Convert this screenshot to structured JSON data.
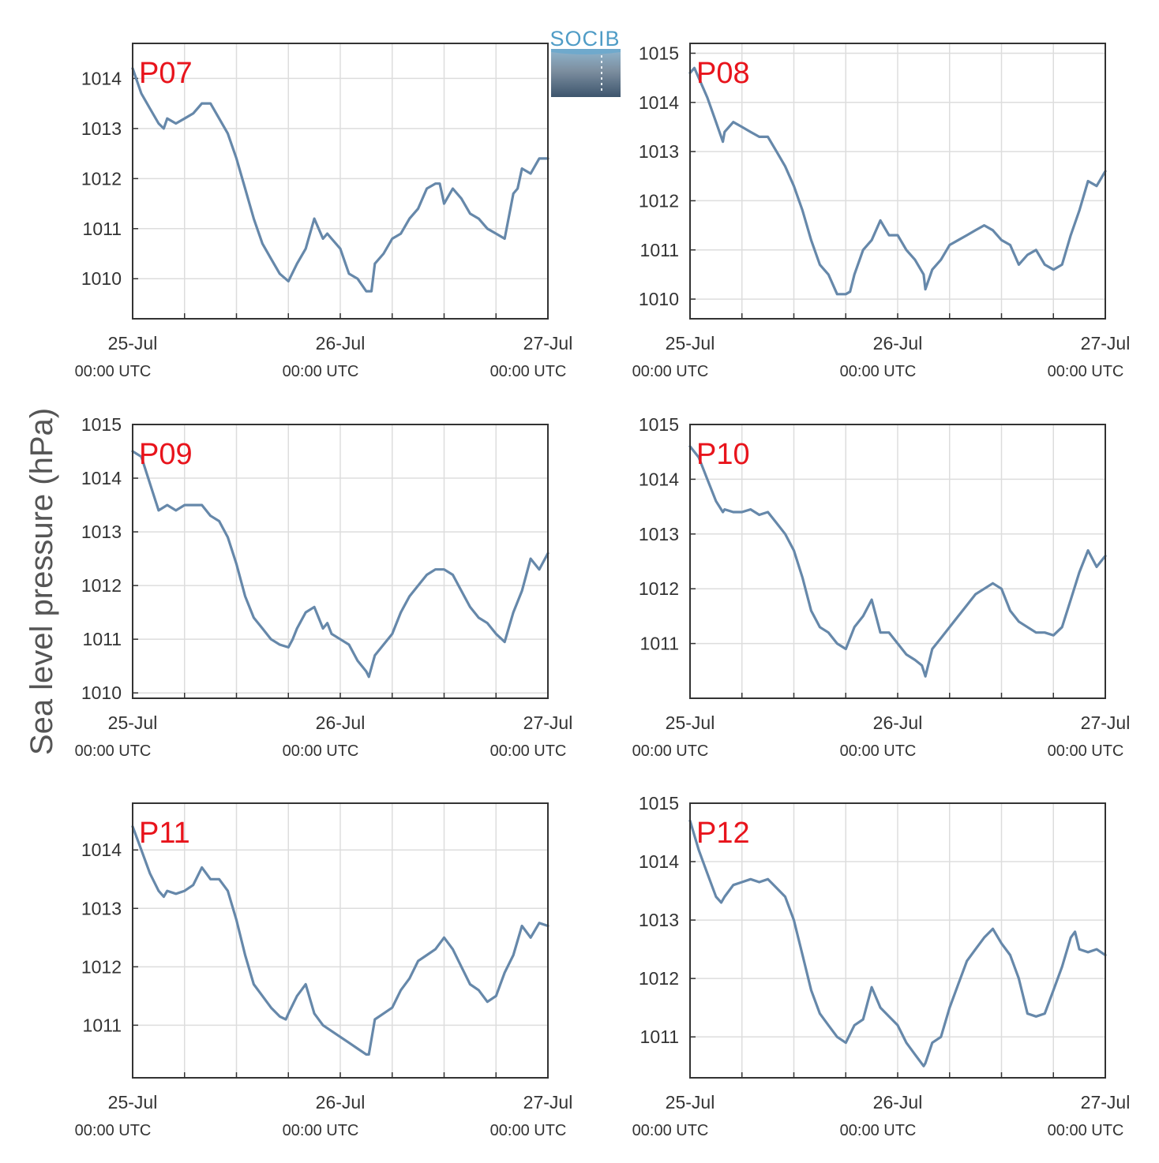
{
  "ylabel": "Sea level pressure (hPa)",
  "logo": {
    "text": "SOCIB"
  },
  "colors": {
    "line": "#6688aa",
    "panel_label": "#e8141c",
    "grid": "#dddddd",
    "axis": "#333333"
  },
  "x_ticks": [
    {
      "date": "25-Jul",
      "time": "00:00 UTC"
    },
    {
      "date": "26-Jul",
      "time": "00:00 UTC"
    },
    {
      "date": "27-Jul",
      "time": "00:00 UTC"
    }
  ],
  "chart_data": [
    {
      "type": "line",
      "name": "P07",
      "x_unit": "hours since 25-Jul 00:00 UTC",
      "xlim": [
        0,
        48
      ],
      "yticks": [
        1010,
        1011,
        1012,
        1013,
        1014
      ],
      "ylim": [
        1009.2,
        1014.7
      ],
      "x": [
        0,
        1,
        2,
        3,
        3.6,
        4,
        5,
        6,
        7,
        8,
        9,
        10,
        11,
        12,
        13,
        14,
        15,
        16,
        17,
        18,
        19,
        20,
        21,
        22,
        22.5,
        23,
        24,
        25,
        26,
        27,
        27.6,
        28,
        29,
        30,
        31,
        32,
        33,
        34,
        35,
        35.5,
        36,
        37,
        38,
        39,
        40,
        41,
        42,
        43,
        44,
        44.5,
        45,
        46,
        47,
        48
      ],
      "y": [
        1014.2,
        1013.7,
        1013.4,
        1013.1,
        1013.0,
        1013.2,
        1013.1,
        1013.2,
        1013.3,
        1013.5,
        1013.5,
        1013.2,
        1012.9,
        1012.4,
        1011.8,
        1011.2,
        1010.7,
        1010.4,
        1010.1,
        1009.95,
        1010.3,
        1010.6,
        1011.2,
        1010.8,
        1010.9,
        1010.8,
        1010.6,
        1010.1,
        1010.0,
        1009.75,
        1009.75,
        1010.3,
        1010.5,
        1010.8,
        1010.9,
        1011.2,
        1011.4,
        1011.8,
        1011.9,
        1011.9,
        1011.5,
        1011.8,
        1011.6,
        1011.3,
        1011.2,
        1011.0,
        1010.9,
        1010.8,
        1011.7,
        1011.8,
        1012.2,
        1012.1,
        1012.4,
        1012.4
      ]
    },
    {
      "type": "line",
      "name": "P08",
      "x_unit": "hours since 25-Jul 00:00 UTC",
      "xlim": [
        0,
        48
      ],
      "yticks": [
        1010,
        1011,
        1012,
        1013,
        1014,
        1015
      ],
      "ylim": [
        1009.6,
        1015.2
      ],
      "x": [
        0,
        0.5,
        1,
        2,
        3,
        3.8,
        4,
        5,
        6,
        7,
        8,
        9,
        10,
        11,
        12,
        13,
        14,
        15,
        16,
        17,
        18,
        18.5,
        19,
        20,
        21,
        22,
        23,
        24,
        25,
        26,
        27,
        27.2,
        28,
        29,
        30,
        31,
        32,
        33,
        34,
        35,
        36,
        37,
        38,
        39,
        40,
        41,
        42,
        43,
        44,
        45,
        46,
        47,
        48
      ],
      "y": [
        1014.6,
        1014.7,
        1014.5,
        1014.1,
        1013.6,
        1013.2,
        1013.4,
        1013.6,
        1013.5,
        1013.4,
        1013.3,
        1013.3,
        1013.0,
        1012.7,
        1012.3,
        1011.8,
        1011.2,
        1010.7,
        1010.5,
        1010.1,
        1010.1,
        1010.15,
        1010.5,
        1011.0,
        1011.2,
        1011.6,
        1011.3,
        1011.3,
        1011.0,
        1010.8,
        1010.5,
        1010.2,
        1010.6,
        1010.8,
        1011.1,
        1011.2,
        1011.3,
        1011.4,
        1011.5,
        1011.4,
        1011.2,
        1011.1,
        1010.7,
        1010.9,
        1011.0,
        1010.7,
        1010.6,
        1010.7,
        1011.3,
        1011.8,
        1012.4,
        1012.3,
        1012.6
      ]
    },
    {
      "type": "line",
      "name": "P09",
      "x_unit": "hours since 25-Jul 00:00 UTC",
      "xlim": [
        0,
        48
      ],
      "yticks": [
        1010,
        1011,
        1012,
        1013,
        1014,
        1015
      ],
      "ylim": [
        1009.9,
        1015.0
      ],
      "x": [
        0,
        1,
        2,
        3,
        4,
        5,
        6,
        7,
        8,
        9,
        10,
        11,
        12,
        13,
        14,
        15,
        16,
        17,
        18,
        18.5,
        19,
        20,
        21,
        22,
        22.5,
        23,
        24,
        25,
        26,
        27,
        27.3,
        28,
        29,
        30,
        31,
        32,
        33,
        34,
        35,
        36,
        37,
        38,
        39,
        40,
        41,
        42,
        43,
        44,
        45,
        46,
        47,
        48
      ],
      "y": [
        1014.5,
        1014.4,
        1013.9,
        1013.4,
        1013.5,
        1013.4,
        1013.5,
        1013.5,
        1013.5,
        1013.3,
        1013.2,
        1012.9,
        1012.4,
        1011.8,
        1011.4,
        1011.2,
        1011.0,
        1010.9,
        1010.85,
        1011.0,
        1011.2,
        1011.5,
        1011.6,
        1011.2,
        1011.3,
        1011.1,
        1011.0,
        1010.9,
        1010.6,
        1010.4,
        1010.3,
        1010.7,
        1010.9,
        1011.1,
        1011.5,
        1011.8,
        1012.0,
        1012.2,
        1012.3,
        1012.3,
        1012.2,
        1011.9,
        1011.6,
        1011.4,
        1011.3,
        1011.1,
        1010.95,
        1011.5,
        1011.9,
        1012.5,
        1012.3,
        1012.6
      ]
    },
    {
      "type": "line",
      "name": "P10",
      "x_unit": "hours since 25-Jul 00:00 UTC",
      "xlim": [
        0,
        48
      ],
      "yticks": [
        1011,
        1012,
        1013,
        1014,
        1015
      ],
      "ylim": [
        1010.0,
        1015.0
      ],
      "x": [
        0,
        1,
        2,
        3,
        3.8,
        4,
        5,
        6,
        7,
        8,
        9,
        10,
        11,
        12,
        13,
        14,
        15,
        16,
        17,
        18,
        19,
        20,
        21,
        22,
        23,
        24,
        25,
        26,
        26.8,
        27.2,
        28,
        29,
        30,
        31,
        32,
        33,
        34,
        35,
        36,
        37,
        38,
        39,
        40,
        41,
        42,
        43,
        44,
        45,
        46,
        47,
        48
      ],
      "y": [
        1014.6,
        1014.4,
        1014.0,
        1013.6,
        1013.4,
        1013.45,
        1013.4,
        1013.4,
        1013.45,
        1013.35,
        1013.4,
        1013.2,
        1013.0,
        1012.7,
        1012.2,
        1011.6,
        1011.3,
        1011.2,
        1011.0,
        1010.9,
        1011.3,
        1011.5,
        1011.8,
        1011.2,
        1011.2,
        1011.0,
        1010.8,
        1010.7,
        1010.6,
        1010.4,
        1010.9,
        1011.1,
        1011.3,
        1011.5,
        1011.7,
        1011.9,
        1012.0,
        1012.1,
        1012.0,
        1011.6,
        1011.4,
        1011.3,
        1011.2,
        1011.2,
        1011.15,
        1011.3,
        1011.8,
        1012.3,
        1012.7,
        1012.4,
        1012.6
      ]
    },
    {
      "type": "line",
      "name": "P11",
      "x_unit": "hours since 25-Jul 00:00 UTC",
      "xlim": [
        0,
        48
      ],
      "yticks": [
        1011,
        1012,
        1013,
        1014
      ],
      "ylim": [
        1010.1,
        1014.8
      ],
      "x": [
        0,
        1,
        2,
        3,
        3.6,
        4,
        5,
        6,
        7,
        8,
        9,
        10,
        11,
        12,
        13,
        14,
        15,
        16,
        17,
        17.7,
        18,
        19,
        20,
        21,
        22,
        23,
        24,
        25,
        26,
        27,
        27.3,
        28,
        29,
        30,
        31,
        32,
        33,
        34,
        35,
        36,
        37,
        38,
        39,
        40,
        40.5,
        41,
        42,
        43,
        44,
        45,
        46,
        47,
        48
      ],
      "y": [
        1014.4,
        1014.0,
        1013.6,
        1013.3,
        1013.2,
        1013.3,
        1013.25,
        1013.3,
        1013.4,
        1013.7,
        1013.5,
        1013.5,
        1013.3,
        1012.8,
        1012.2,
        1011.7,
        1011.5,
        1011.3,
        1011.15,
        1011.1,
        1011.2,
        1011.5,
        1011.7,
        1011.2,
        1011.0,
        1010.9,
        1010.8,
        1010.7,
        1010.6,
        1010.5,
        1010.5,
        1011.1,
        1011.2,
        1011.3,
        1011.6,
        1011.8,
        1012.1,
        1012.2,
        1012.3,
        1012.5,
        1012.3,
        1012.0,
        1011.7,
        1011.6,
        1011.5,
        1011.4,
        1011.5,
        1011.9,
        1012.2,
        1012.7,
        1012.5,
        1012.75,
        1012.7
      ]
    },
    {
      "type": "line",
      "name": "P12",
      "x_unit": "hours since 25-Jul 00:00 UTC",
      "xlim": [
        0,
        48
      ],
      "yticks": [
        1011,
        1012,
        1013,
        1014,
        1015
      ],
      "ylim": [
        1010.3,
        1015.0
      ],
      "x": [
        0,
        1,
        2,
        3,
        3.6,
        4,
        5,
        6,
        7,
        8,
        9,
        10,
        11,
        12,
        13,
        14,
        15,
        16,
        17,
        18,
        19,
        20,
        21,
        22,
        23,
        24,
        25,
        26,
        27,
        27.2,
        28,
        29,
        30,
        31,
        32,
        33,
        34,
        35,
        36,
        37,
        38,
        39,
        40,
        41,
        42,
        43,
        44,
        44.5,
        45,
        46,
        47,
        48
      ],
      "y": [
        1014.7,
        1014.2,
        1013.8,
        1013.4,
        1013.3,
        1013.4,
        1013.6,
        1013.65,
        1013.7,
        1013.65,
        1013.7,
        1013.55,
        1013.4,
        1013.0,
        1012.4,
        1011.8,
        1011.4,
        1011.2,
        1011.0,
        1010.9,
        1011.2,
        1011.3,
        1011.85,
        1011.5,
        1011.35,
        1011.2,
        1010.9,
        1010.7,
        1010.5,
        1010.55,
        1010.9,
        1011.0,
        1011.5,
        1011.9,
        1012.3,
        1012.5,
        1012.7,
        1012.85,
        1012.6,
        1012.4,
        1012.0,
        1011.4,
        1011.35,
        1011.4,
        1011.8,
        1012.2,
        1012.7,
        1012.8,
        1012.5,
        1012.45,
        1012.5,
        1012.4
      ]
    }
  ]
}
